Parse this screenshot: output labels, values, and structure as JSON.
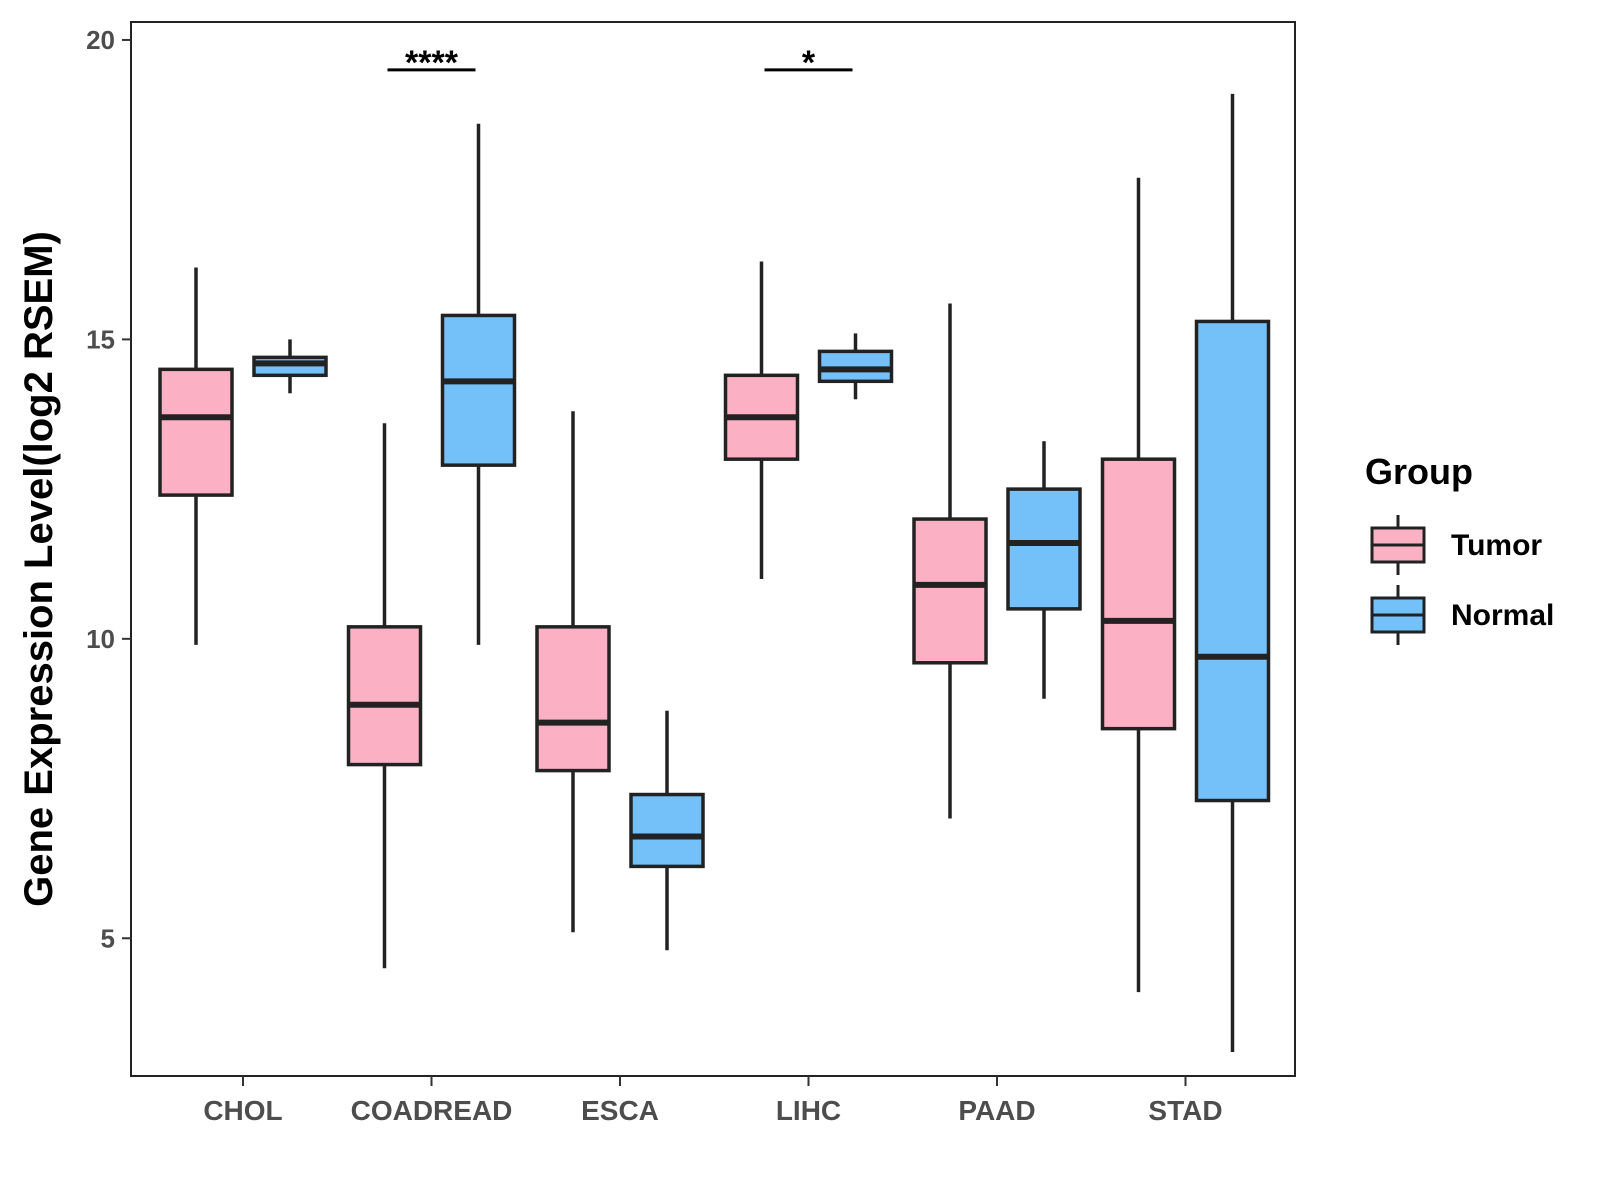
{
  "chart_data": {
    "type": "boxplot",
    "title": "",
    "xlabel": "",
    "ylabel": "Gene Expression Level(log2 RSEM)",
    "ylim": [
      2.7,
      20.3
    ],
    "yticks": [
      5,
      10,
      15,
      20
    ],
    "grid": false,
    "categories": [
      "CHOL",
      "COADREAD",
      "ESCA",
      "LIHC",
      "PAAD",
      "STAD"
    ],
    "legend": {
      "title": "Group",
      "position": "right",
      "entries": [
        {
          "name": "Tumor",
          "color": "#FBB1C3"
        },
        {
          "name": "Normal",
          "color": "#74C0F8"
        }
      ]
    },
    "series": [
      {
        "name": "Tumor",
        "color": "#FBB1C3",
        "boxes": [
          {
            "category": "CHOL",
            "min": 9.9,
            "q1": 12.4,
            "median": 13.7,
            "q3": 14.5,
            "max": 16.2
          },
          {
            "category": "COADREAD",
            "min": 4.5,
            "q1": 7.9,
            "median": 8.9,
            "q3": 10.2,
            "max": 13.6
          },
          {
            "category": "ESCA",
            "min": 5.1,
            "q1": 7.8,
            "median": 8.6,
            "q3": 10.2,
            "max": 13.8
          },
          {
            "category": "LIHC",
            "min": 11.0,
            "q1": 13.0,
            "median": 13.7,
            "q3": 14.4,
            "max": 16.3
          },
          {
            "category": "PAAD",
            "min": 7.0,
            "q1": 9.6,
            "median": 10.9,
            "q3": 12.0,
            "max": 15.6
          },
          {
            "category": "STAD",
            "min": 4.1,
            "q1": 8.5,
            "median": 10.3,
            "q3": 13.0,
            "max": 17.7
          }
        ]
      },
      {
        "name": "Normal",
        "color": "#74C0F8",
        "boxes": [
          {
            "category": "CHOL",
            "min": 14.1,
            "q1": 14.4,
            "median": 14.6,
            "q3": 14.7,
            "max": 15.0
          },
          {
            "category": "COADREAD",
            "min": 9.9,
            "q1": 12.9,
            "median": 14.3,
            "q3": 15.4,
            "max": 18.6
          },
          {
            "category": "ESCA",
            "min": 4.8,
            "q1": 6.2,
            "median": 6.7,
            "q3": 7.4,
            "max": 8.8
          },
          {
            "category": "LIHC",
            "min": 14.0,
            "q1": 14.3,
            "median": 14.5,
            "q3": 14.8,
            "max": 15.1
          },
          {
            "category": "PAAD",
            "min": 9.0,
            "q1": 10.5,
            "median": 11.6,
            "q3": 12.5,
            "max": 13.3
          },
          {
            "category": "STAD",
            "min": 3.1,
            "q1": 7.3,
            "median": 9.7,
            "q3": 15.3,
            "max": 19.1
          }
        ]
      }
    ],
    "annotations": [
      {
        "category": "COADREAD",
        "label": "****",
        "y": 19.5
      },
      {
        "category": "LIHC",
        "label": "*",
        "y": 19.5
      }
    ]
  }
}
